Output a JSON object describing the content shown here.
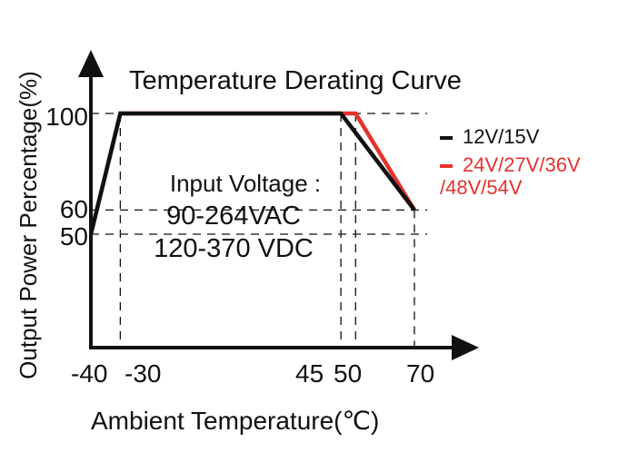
{
  "chart_data": {
    "type": "line",
    "title": "Temperature Derating Curve",
    "xlabel": "Ambient Temperature(℃)",
    "ylabel": "Output Power Percentage(%)",
    "x_ticks": [
      "-40",
      "-30",
      "45",
      "50",
      "70"
    ],
    "y_ticks": [
      "100",
      "60",
      "50"
    ],
    "xlim": [
      -40,
      70
    ],
    "ylim": [
      50,
      100
    ],
    "annotation": {
      "line1": "Input Voltage :",
      "line2": "90-264VAC",
      "line3": "120-370 VDC"
    },
    "legend_position": "right",
    "series": [
      {
        "name": "12V/15V",
        "color": "#111111",
        "points": [
          [
            -40,
            50
          ],
          [
            -30,
            100
          ],
          [
            45,
            100
          ],
          [
            70,
            60
          ]
        ]
      },
      {
        "name": "24V/27V/36V\n/48V/54V",
        "name_lines": [
          "24V/27V/36V",
          "/48V/54V"
        ],
        "color": "#e5322d",
        "points": [
          [
            -40,
            50
          ],
          [
            -30,
            100
          ],
          [
            50,
            100
          ],
          [
            70,
            60
          ]
        ]
      }
    ]
  }
}
